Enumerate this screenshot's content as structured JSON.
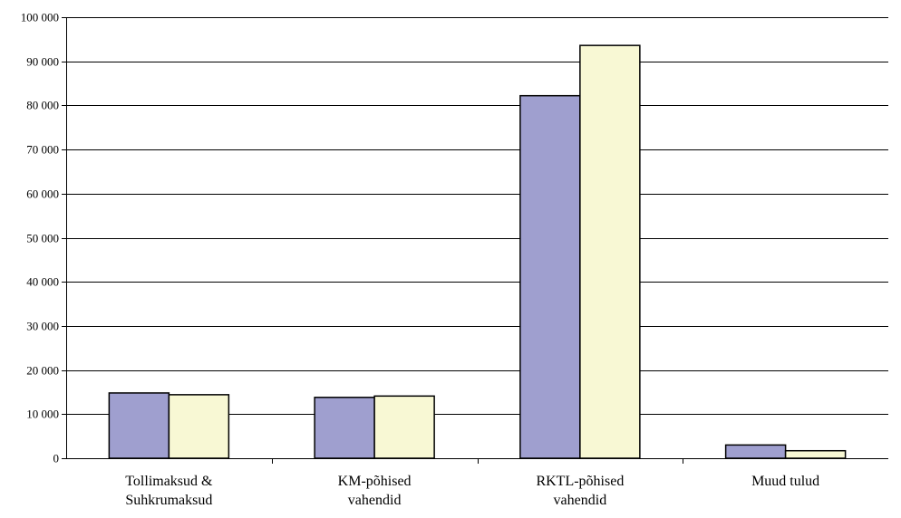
{
  "chart_data": {
    "type": "bar",
    "categories": [
      [
        "Tollimaksud &",
        "Suhkrumaksud"
      ],
      [
        "KM-põhised",
        "vahendid"
      ],
      [
        "RKTL-põhised",
        "vahendid"
      ],
      [
        "Muud tulud"
      ]
    ],
    "series": [
      {
        "values": [
          14800,
          13800,
          82200,
          3000
        ],
        "color": "#9f9fcf"
      },
      {
        "values": [
          14400,
          14100,
          93600,
          1700
        ],
        "color": "#f8f8d4"
      }
    ],
    "yticks": [
      "0",
      "10 000",
      "20 000",
      "30 000",
      "40 000",
      "50 000",
      "60 000",
      "70 000",
      "80 000",
      "90 000",
      "100 000"
    ],
    "ylim": [
      0,
      100000
    ],
    "grid": true
  }
}
